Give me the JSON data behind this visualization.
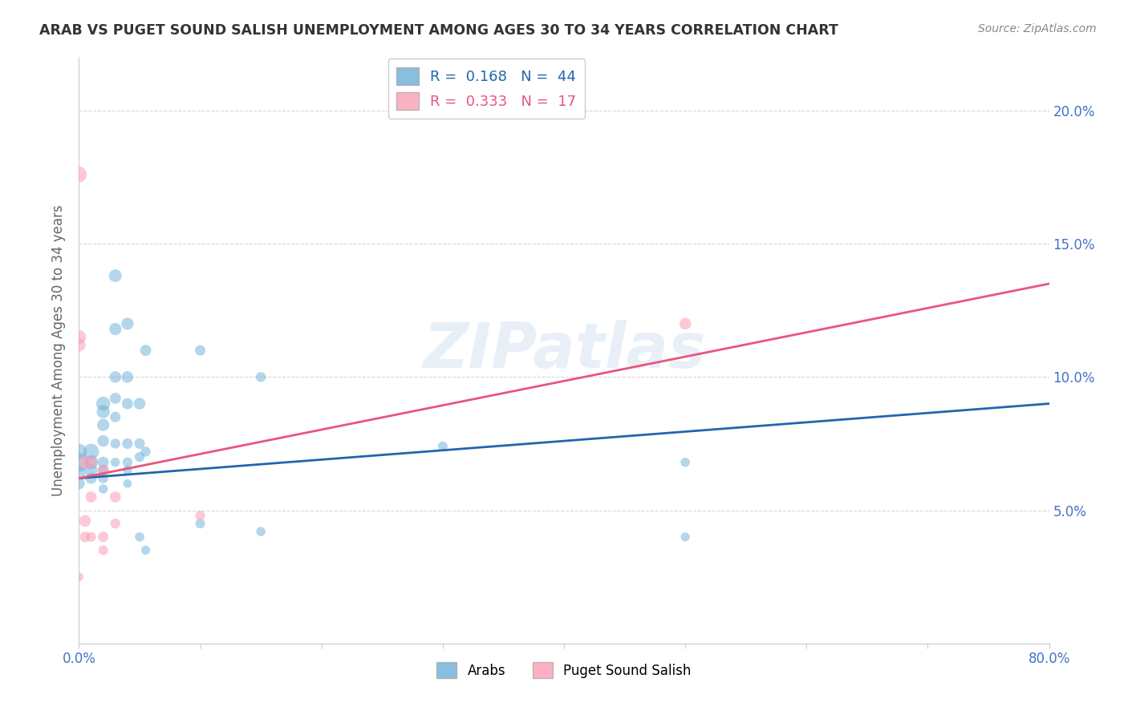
{
  "title": "ARAB VS PUGET SOUND SALISH UNEMPLOYMENT AMONG AGES 30 TO 34 YEARS CORRELATION CHART",
  "source": "Source: ZipAtlas.com",
  "ylabel": "Unemployment Among Ages 30 to 34 years",
  "xlim": [
    0,
    0.8
  ],
  "ylim": [
    0,
    0.22
  ],
  "arab_r": 0.168,
  "arab_n": 44,
  "salish_r": 0.333,
  "salish_n": 17,
  "arab_color": "#6baed6",
  "salish_color": "#fc9eb5",
  "arab_line_color": "#2166ac",
  "salish_line_color": "#e8567c",
  "arab_line": [
    0.062,
    0.09
  ],
  "salish_line": [
    0.062,
    0.135
  ],
  "watermark": "ZIPatlas",
  "background_color": "#ffffff",
  "arab_points": [
    [
      0.0,
      0.068
    ],
    [
      0.0,
      0.072
    ],
    [
      0.0,
      0.064
    ],
    [
      0.0,
      0.06
    ],
    [
      0.01,
      0.072
    ],
    [
      0.01,
      0.068
    ],
    [
      0.01,
      0.065
    ],
    [
      0.01,
      0.062
    ],
    [
      0.02,
      0.09
    ],
    [
      0.02,
      0.087
    ],
    [
      0.02,
      0.082
    ],
    [
      0.02,
      0.076
    ],
    [
      0.02,
      0.068
    ],
    [
      0.02,
      0.065
    ],
    [
      0.02,
      0.062
    ],
    [
      0.02,
      0.058
    ],
    [
      0.03,
      0.138
    ],
    [
      0.03,
      0.118
    ],
    [
      0.03,
      0.1
    ],
    [
      0.03,
      0.092
    ],
    [
      0.03,
      0.085
    ],
    [
      0.03,
      0.075
    ],
    [
      0.03,
      0.068
    ],
    [
      0.04,
      0.12
    ],
    [
      0.04,
      0.1
    ],
    [
      0.04,
      0.09
    ],
    [
      0.04,
      0.075
    ],
    [
      0.04,
      0.068
    ],
    [
      0.04,
      0.065
    ],
    [
      0.04,
      0.06
    ],
    [
      0.05,
      0.09
    ],
    [
      0.05,
      0.075
    ],
    [
      0.05,
      0.07
    ],
    [
      0.05,
      0.04
    ],
    [
      0.055,
      0.11
    ],
    [
      0.055,
      0.072
    ],
    [
      0.055,
      0.035
    ],
    [
      0.1,
      0.11
    ],
    [
      0.1,
      0.045
    ],
    [
      0.15,
      0.1
    ],
    [
      0.15,
      0.042
    ],
    [
      0.3,
      0.074
    ],
    [
      0.5,
      0.068
    ],
    [
      0.5,
      0.04
    ]
  ],
  "salish_points": [
    [
      0.0,
      0.176
    ],
    [
      0.0,
      0.115
    ],
    [
      0.0,
      0.112
    ],
    [
      0.005,
      0.068
    ],
    [
      0.005,
      0.046
    ],
    [
      0.005,
      0.04
    ],
    [
      0.01,
      0.068
    ],
    [
      0.01,
      0.055
    ],
    [
      0.01,
      0.04
    ],
    [
      0.02,
      0.065
    ],
    [
      0.02,
      0.04
    ],
    [
      0.02,
      0.035
    ],
    [
      0.03,
      0.055
    ],
    [
      0.03,
      0.045
    ],
    [
      0.1,
      0.048
    ],
    [
      0.5,
      0.12
    ],
    [
      0.0,
      0.025
    ]
  ],
  "arab_sizes": [
    280,
    200,
    150,
    110,
    200,
    160,
    130,
    100,
    160,
    140,
    120,
    110,
    100,
    90,
    80,
    70,
    130,
    120,
    110,
    100,
    90,
    80,
    70,
    120,
    110,
    100,
    90,
    80,
    70,
    60,
    110,
    90,
    80,
    70,
    100,
    80,
    65,
    90,
    75,
    80,
    70,
    75,
    70,
    65
  ],
  "salish_sizes": [
    200,
    160,
    140,
    130,
    110,
    90,
    120,
    100,
    80,
    110,
    90,
    75,
    100,
    80,
    80,
    110,
    65
  ]
}
